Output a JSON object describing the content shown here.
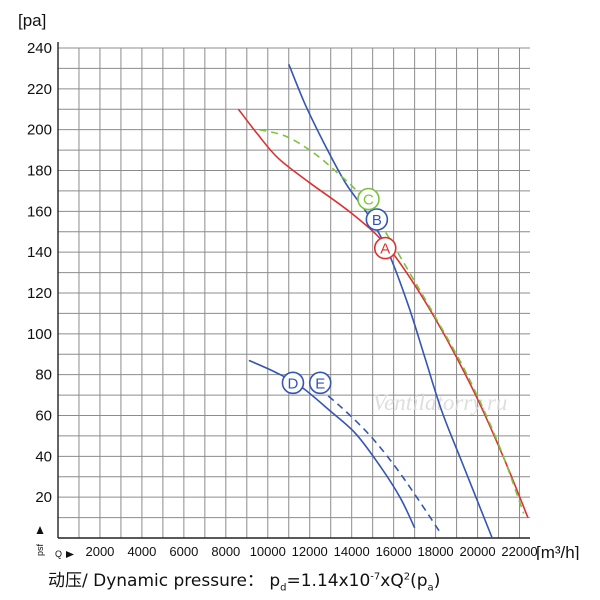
{
  "chart_data": {
    "type": "line",
    "ylabel": "[pa]",
    "xlabel": "[m³/h]",
    "x_axis_marker": "Q",
    "y_axis_marker": "psf",
    "xlim": [
      0,
      22500
    ],
    "ylim": [
      0,
      240
    ],
    "x_ticks": [
      2000,
      4000,
      6000,
      8000,
      10000,
      12000,
      14000,
      16000,
      18000,
      20000,
      22000
    ],
    "y_ticks": [
      20,
      40,
      60,
      80,
      100,
      120,
      140,
      160,
      180,
      200,
      220,
      240
    ],
    "x_tick_labels": [
      "2000",
      "4000",
      "6000",
      "8000",
      "10000",
      "12000",
      "14000",
      "16000",
      "18000",
      "20000",
      "22000"
    ],
    "y_tick_labels": [
      "20",
      "40",
      "60",
      "80",
      "100",
      "120",
      "140",
      "160",
      "180",
      "200",
      "220",
      "240"
    ],
    "grid": true,
    "watermark": "Ventilatorry.ru",
    "series": [
      {
        "name": "A",
        "color": "#e03030",
        "dash": false,
        "label_at": [
          15600,
          142
        ],
        "points": [
          [
            8600,
            210
          ],
          [
            9500,
            198
          ],
          [
            10500,
            186
          ],
          [
            12000,
            174
          ],
          [
            14000,
            159
          ],
          [
            15600,
            144
          ],
          [
            17000,
            124
          ],
          [
            18500,
            98
          ],
          [
            20000,
            68
          ],
          [
            21300,
            38
          ],
          [
            22400,
            10
          ]
        ]
      },
      {
        "name": "B",
        "color": "#3456b4",
        "dash": false,
        "label_at": [
          15200,
          156
        ],
        "points": [
          [
            11000,
            232
          ],
          [
            11800,
            212
          ],
          [
            12700,
            193
          ],
          [
            13700,
            174
          ],
          [
            14800,
            158
          ],
          [
            15700,
            141
          ],
          [
            16700,
            114
          ],
          [
            17500,
            88
          ],
          [
            18300,
            62
          ],
          [
            19300,
            36
          ],
          [
            20700,
            0
          ]
        ]
      },
      {
        "name": "C",
        "color": "#7cc23e",
        "dash": true,
        "label_at": [
          14800,
          166
        ],
        "points": [
          [
            9600,
            200
          ],
          [
            10800,
            197
          ],
          [
            12000,
            190
          ],
          [
            13200,
            180
          ],
          [
            14500,
            167
          ],
          [
            15600,
            150
          ],
          [
            16700,
            131
          ],
          [
            18000,
            108
          ],
          [
            19500,
            80
          ],
          [
            21000,
            46
          ],
          [
            22200,
            12
          ]
        ]
      },
      {
        "name": "D",
        "color": "#3456b4",
        "dash": false,
        "label_at": [
          11200,
          76
        ],
        "points": [
          [
            9100,
            87
          ],
          [
            10400,
            81
          ],
          [
            11600,
            74
          ],
          [
            13000,
            62
          ],
          [
            14200,
            51
          ],
          [
            15300,
            36
          ],
          [
            16300,
            20
          ],
          [
            17000,
            5
          ]
        ]
      },
      {
        "name": "E",
        "color": "#3456b4",
        "dash": true,
        "label_at": [
          12500,
          76
        ],
        "points": [
          [
            12000,
            77
          ],
          [
            13400,
            65
          ],
          [
            14800,
            51
          ],
          [
            16000,
            36
          ],
          [
            17100,
            20
          ],
          [
            18200,
            3
          ]
        ]
      }
    ]
  },
  "formula": {
    "prefix": "动压/ Dynamic pressure：  p",
    "sub_d": "d",
    "middle": "=1.14x10",
    "exp": "-7",
    "after_exp": "xQ",
    "sq": "2",
    "paren_open": "(p",
    "sub_a": "a",
    "paren_close": ")"
  }
}
